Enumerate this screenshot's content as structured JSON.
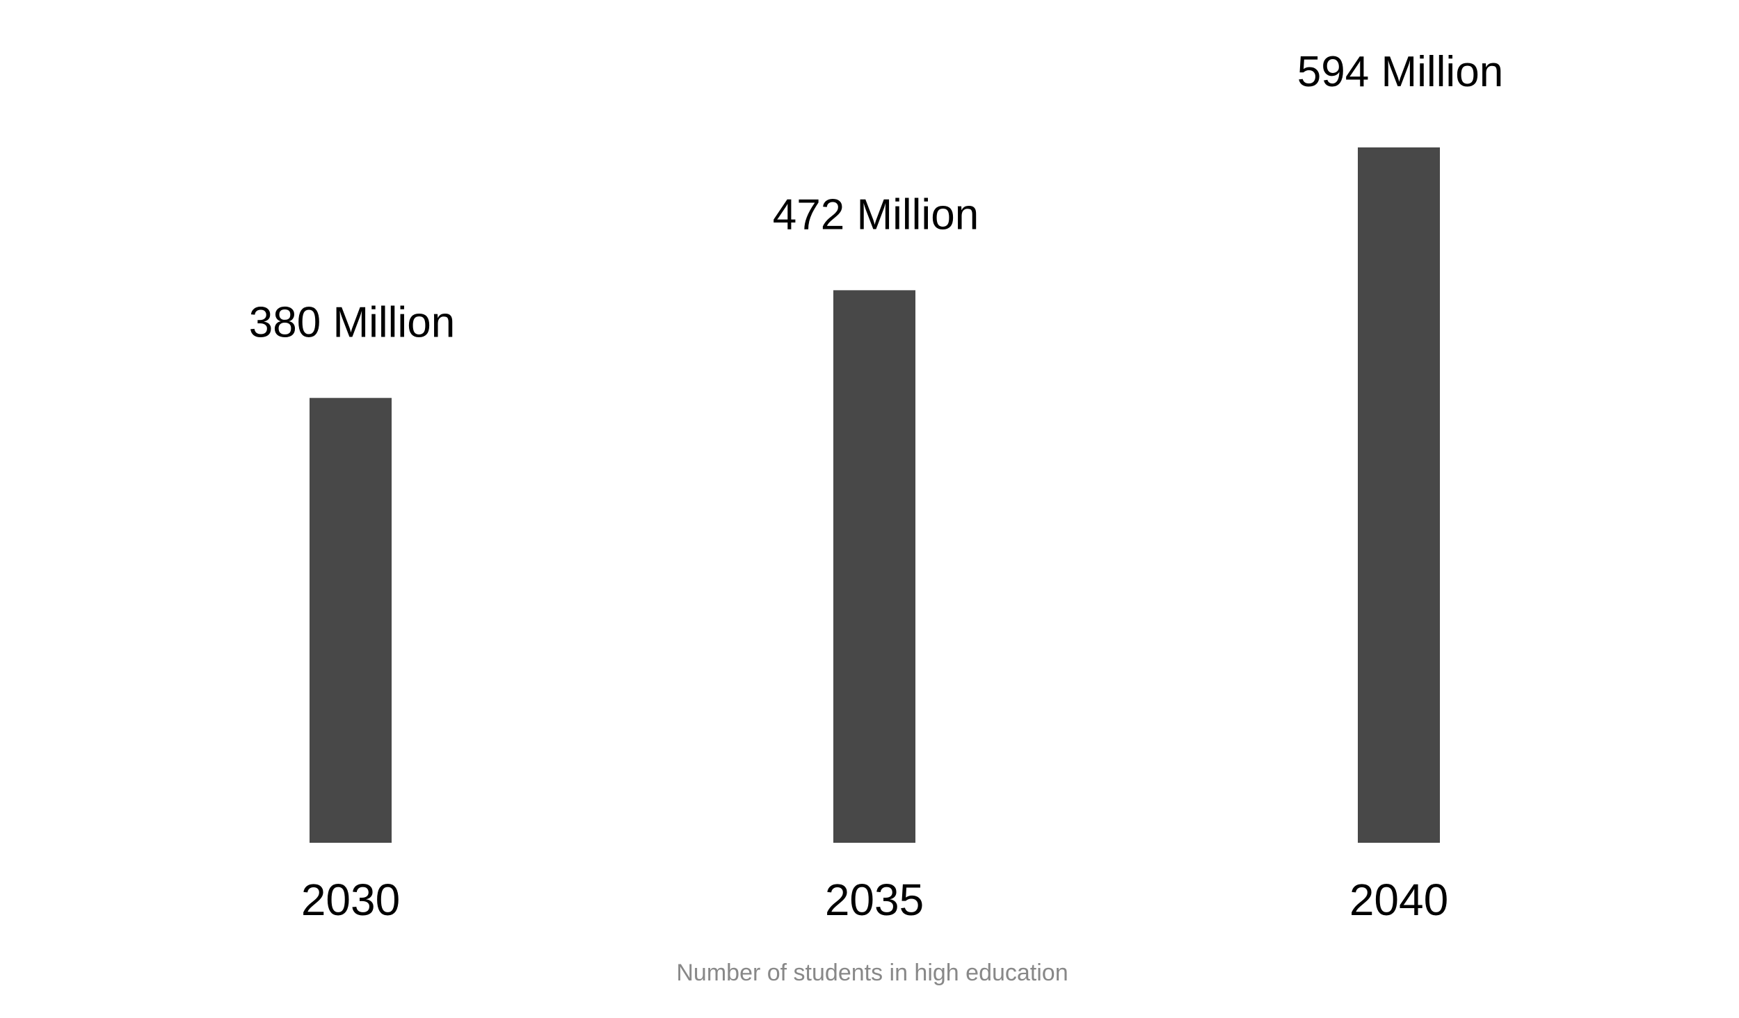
{
  "chart_data": {
    "type": "bar",
    "categories": [
      "2030",
      "2035",
      "2040"
    ],
    "values": [
      380,
      472,
      594
    ],
    "value_labels": [
      "380 Million",
      "472 Million",
      "594 Million"
    ],
    "xlabel": "Number of students in high education",
    "ylabel": "",
    "ylim": [
      0,
      594
    ],
    "grid": false,
    "legend": "none",
    "colors": {
      "bar": "#484848",
      "label": "#000000",
      "axis_title": "#888888",
      "background": "#ffffff"
    }
  }
}
